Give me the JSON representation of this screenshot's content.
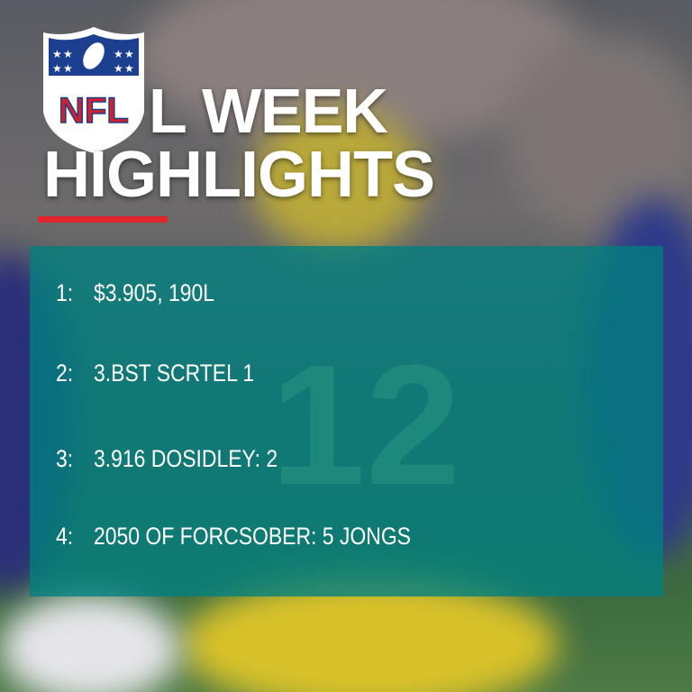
{
  "logo": {
    "text": "NFL"
  },
  "title": {
    "lines": [
      "L WEEK",
      "HIGHLIGHTS"
    ]
  },
  "background": {
    "jersey_number": "12"
  },
  "list": {
    "items": [
      {
        "number": "1:",
        "text": "$3.905, 190L"
      },
      {
        "number": "2:",
        "text": "3.BST SCRTEL 1"
      },
      {
        "number": "3:",
        "text": "3.916 DOSIDLEY: 2"
      },
      {
        "number": "4:",
        "text": "2050 OF FORCSOBER: 5  JONGS"
      }
    ]
  }
}
